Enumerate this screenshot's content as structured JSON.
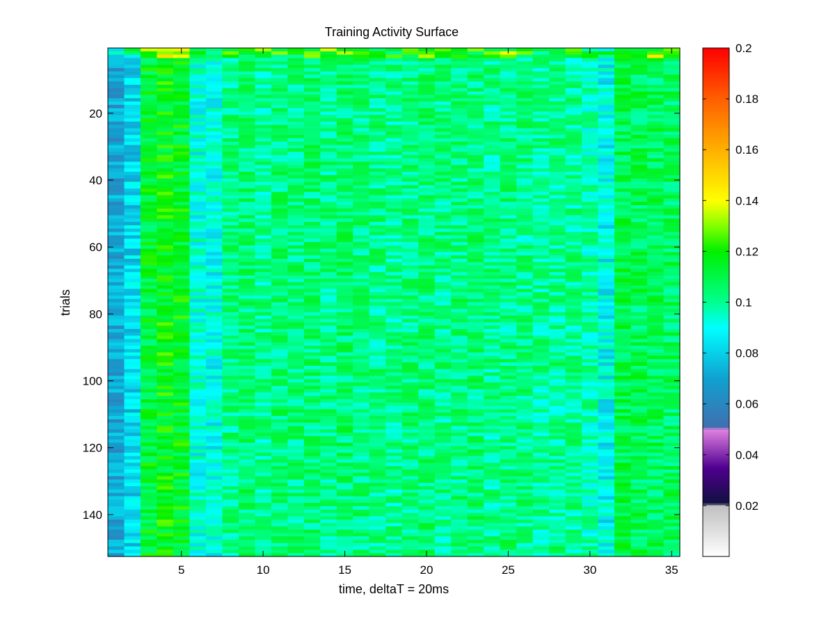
{
  "chart_data": {
    "type": "heatmap",
    "title": "Training Activity Surface",
    "xlabel": "time, deltaT = 20ms",
    "ylabel": "trials",
    "x_range": [
      0.5,
      35.5
    ],
    "y_range": [
      0.5,
      152.5
    ],
    "n_columns": 35,
    "n_rows": 152,
    "y_direction": "reversed",
    "x_ticks": [
      5,
      10,
      15,
      20,
      25,
      30,
      35
    ],
    "y_ticks": [
      20,
      40,
      60,
      80,
      100,
      120,
      140
    ],
    "column_mean_values": [
      0.07,
      0.082,
      0.113,
      0.117,
      0.115,
      0.092,
      0.09,
      0.102,
      0.105,
      0.1,
      0.104,
      0.103,
      0.104,
      0.102,
      0.105,
      0.103,
      0.102,
      0.101,
      0.103,
      0.104,
      0.102,
      0.103,
      0.104,
      0.101,
      0.103,
      0.102,
      0.1,
      0.101,
      0.101,
      0.097,
      0.088,
      0.11,
      0.108,
      0.108,
      0.107
    ],
    "colorbar": {
      "range": [
        0,
        0.2
      ],
      "tick_values": [
        0.02,
        0.04,
        0.06,
        0.08,
        0.1,
        0.12,
        0.14,
        0.16,
        0.18,
        0.2
      ],
      "tick_labels": [
        "0.02",
        "0.04",
        "0.06",
        "0.08",
        "0.1",
        "0.12",
        "0.14",
        "0.16",
        "0.18",
        "0.2"
      ],
      "colormap": [
        {
          "v": 0.0,
          "c": "#ffffff"
        },
        {
          "v": 0.02,
          "c": "#c0c0c0"
        },
        {
          "v": 0.021,
          "c": "#101040"
        },
        {
          "v": 0.035,
          "c": "#500090"
        },
        {
          "v": 0.05,
          "c": "#e080e0"
        },
        {
          "v": 0.051,
          "c": "#4070b0"
        },
        {
          "v": 0.07,
          "c": "#10a0d0"
        },
        {
          "v": 0.09,
          "c": "#00ffff"
        },
        {
          "v": 0.1,
          "c": "#00ff90"
        },
        {
          "v": 0.12,
          "c": "#00f000"
        },
        {
          "v": 0.13,
          "c": "#80ff00"
        },
        {
          "v": 0.14,
          "c": "#ffff00"
        },
        {
          "v": 0.16,
          "c": "#ffb000"
        },
        {
          "v": 0.18,
          "c": "#ff6000"
        },
        {
          "v": 0.2,
          "c": "#ff0000"
        }
      ]
    }
  }
}
